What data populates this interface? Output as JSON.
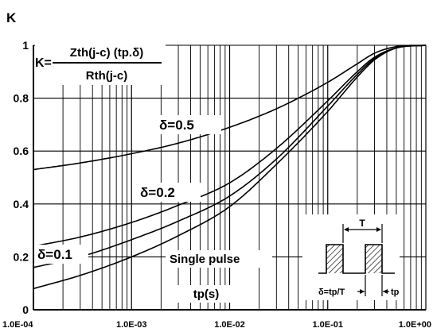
{
  "chart_data": {
    "type": "line",
    "title": "",
    "xlabel": "tp(s)",
    "ylabel": "K",
    "xscale": "log",
    "xlim": [
      0.0001,
      1
    ],
    "ylim": [
      0,
      1
    ],
    "grid": true,
    "x_tick_labels": [
      "1.0E-04",
      "1.0E-03",
      "1.0E-02",
      "1.0E-01",
      "1.0E+00"
    ],
    "y_tick_labels": [
      "0",
      "0.2",
      "0.4",
      "0.6",
      "0.8",
      "1"
    ],
    "formula": {
      "lhs": "K=",
      "numerator": "Zth(j-c) (tp.δ)",
      "denominator": "Rth(j-c)"
    },
    "series": [
      {
        "name": "δ=0.5",
        "x": [
          0.0001,
          0.0003,
          0.001,
          0.003,
          0.01,
          0.03,
          0.1,
          0.2,
          0.3,
          0.5,
          1
        ],
        "y": [
          0.53,
          0.555,
          0.59,
          0.63,
          0.69,
          0.76,
          0.86,
          0.93,
          0.97,
          0.995,
          1.0
        ]
      },
      {
        "name": "δ=0.2",
        "x": [
          0.0001,
          0.0003,
          0.001,
          0.003,
          0.01,
          0.03,
          0.1,
          0.2,
          0.3,
          0.5,
          1
        ],
        "y": [
          0.24,
          0.275,
          0.33,
          0.395,
          0.48,
          0.61,
          0.79,
          0.9,
          0.955,
          0.99,
          1.0
        ]
      },
      {
        "name": "δ=0.1",
        "x": [
          0.0001,
          0.0003,
          0.001,
          0.003,
          0.01,
          0.03,
          0.1,
          0.2,
          0.3,
          0.5,
          1
        ],
        "y": [
          0.16,
          0.2,
          0.265,
          0.335,
          0.43,
          0.57,
          0.77,
          0.89,
          0.95,
          0.99,
          1.0
        ]
      },
      {
        "name": "Single pulse",
        "x": [
          0.0001,
          0.0003,
          0.001,
          0.003,
          0.01,
          0.03,
          0.1,
          0.2,
          0.3,
          0.5,
          1
        ],
        "y": [
          0.08,
          0.13,
          0.2,
          0.28,
          0.39,
          0.55,
          0.75,
          0.88,
          0.945,
          0.99,
          1.0
        ]
      }
    ],
    "inset": {
      "period_label": "T",
      "duty_label": "δ=tp/T",
      "pulse_label": "tp"
    }
  }
}
